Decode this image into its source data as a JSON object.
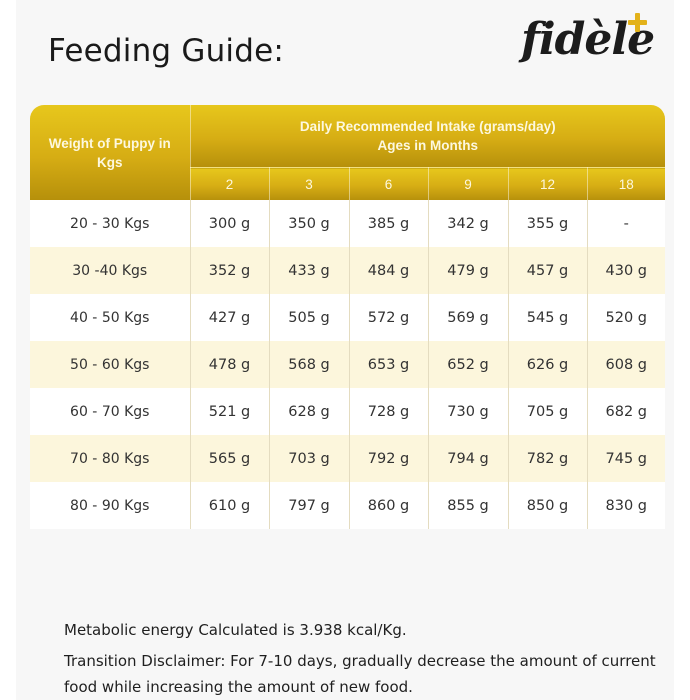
{
  "title": "Feeding Guide:",
  "brand": {
    "name": "fidèle",
    "accent_color": "#e3b21a"
  },
  "table": {
    "weight_header": "Weight of Puppy in Kgs",
    "intake_header_line1": "Daily Recommended Intake (grams/day)",
    "intake_header_line2": "Ages in Months",
    "ages": [
      "2",
      "3",
      "6",
      "9",
      "12",
      "18"
    ],
    "rows": [
      {
        "weight": "20 - 30 Kgs",
        "values": [
          "300 g",
          "350 g",
          "385 g",
          "342 g",
          "355 g",
          "-"
        ]
      },
      {
        "weight": "30 -40 Kgs",
        "values": [
          "352 g",
          "433 g",
          "484 g",
          "479 g",
          "457 g",
          "430 g"
        ]
      },
      {
        "weight": "40 - 50 Kgs",
        "values": [
          "427 g",
          "505 g",
          "572 g",
          "569 g",
          "545 g",
          "520 g"
        ]
      },
      {
        "weight": "50 - 60 Kgs",
        "values": [
          "478 g",
          "568 g",
          "653 g",
          "652 g",
          "626 g",
          "608 g"
        ]
      },
      {
        "weight": "60 - 70 Kgs",
        "values": [
          "521 g",
          "628 g",
          "728 g",
          "730 g",
          "705 g",
          "682 g"
        ]
      },
      {
        "weight": "70 - 80 Kgs",
        "values": [
          "565 g",
          "703 g",
          "792 g",
          "794 g",
          "782 g",
          "745 g"
        ]
      },
      {
        "weight": "80 - 90 Kgs",
        "values": [
          "610 g",
          "797 g",
          "860 g",
          "855 g",
          "850 g",
          "830 g"
        ]
      }
    ],
    "header_color": "#d6ad14",
    "stripe_color": "#fcf6dc"
  },
  "notes": {
    "energy": "Metabolic energy Calculated is 3.938 kcal/Kg.",
    "disclaimer": "Transition Disclaimer: For 7-10 days, gradually decrease the amount of current food while increasing the amount of new food."
  }
}
